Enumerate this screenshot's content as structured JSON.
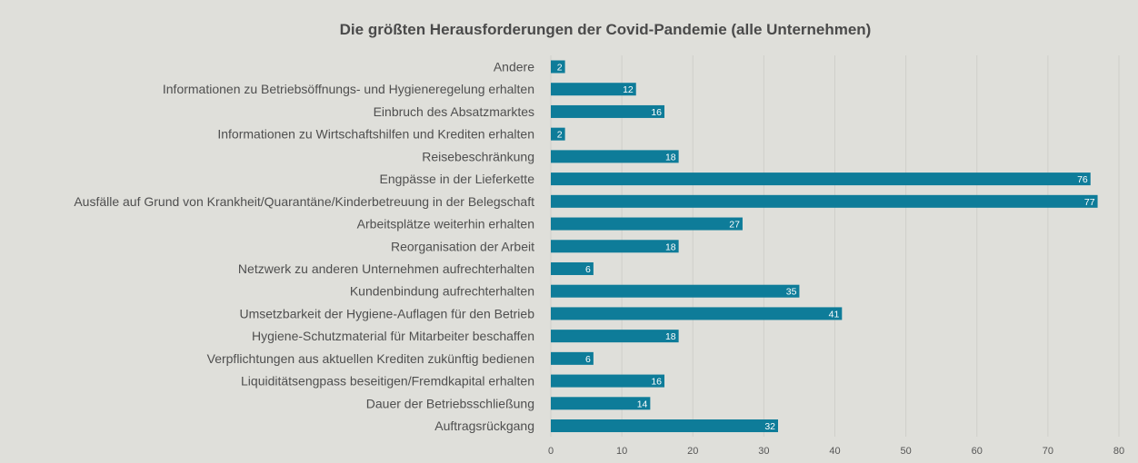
{
  "chart_data": {
    "type": "bar",
    "orientation": "horizontal",
    "title": "Die größten Herausforderungen der Covid-Pandemie (alle Unternehmen)",
    "xlabel": "",
    "ylabel": "",
    "xlim": [
      0,
      80
    ],
    "xticks": [
      0,
      10,
      20,
      30,
      40,
      50,
      60,
      70,
      80
    ],
    "grid": true,
    "legend": "none",
    "bar_color": "#0e7c99",
    "categories": [
      "Andere",
      "Informationen zu Betriebsöffnungs- und Hygieneregelung erhalten",
      "Einbruch des Absatzmarktes",
      "Informationen zu Wirtschaftshilfen und Krediten erhalten",
      "Reisebeschränkung",
      "Engpässe in der Lieferkette",
      "Ausfälle auf Grund von Krankheit/Quarantäne/Kinderbetreuung in der Belegschaft",
      "Arbeitsplätze weiterhin erhalten",
      "Reorganisation der Arbeit",
      "Netzwerk zu anderen Unternehmen aufrechterhalten",
      "Kundenbindung aufrechterhalten",
      "Umsetzbarkeit der Hygiene-Auflagen für den Betrieb",
      "Hygiene-Schutzmaterial für Mitarbeiter beschaffen",
      "Verpflichtungen aus aktuellen Krediten zukünftig bedienen",
      "Liquiditätsengpass beseitigen/Fremdkapital erhalten",
      "Dauer der Betriebsschließung",
      "Auftragsrückgang"
    ],
    "values": [
      2,
      12,
      16,
      2,
      18,
      76,
      77,
      27,
      18,
      6,
      35,
      41,
      18,
      6,
      16,
      14,
      32
    ]
  }
}
